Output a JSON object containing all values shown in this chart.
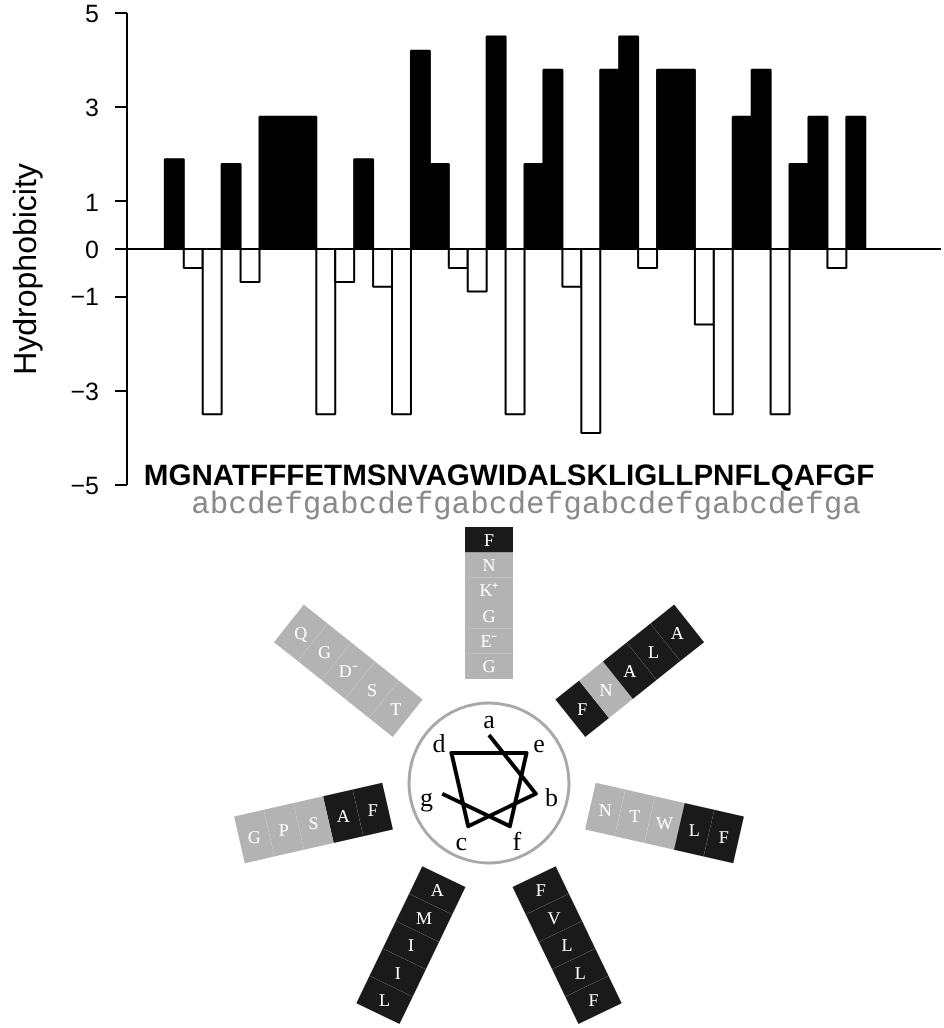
{
  "chart_data": [
    {
      "type": "bar",
      "ylabel": "Hydrophobicity",
      "categories": [
        null,
        null,
        null,
        null,
        null,
        null,
        null,
        null,
        null,
        null,
        null,
        null,
        null,
        null,
        null,
        null,
        null,
        null,
        null,
        null,
        null,
        null,
        null,
        null,
        null,
        null,
        null,
        null,
        null,
        null,
        null,
        null,
        null,
        null,
        null,
        null,
        null,
        null,
        null,
        null,
        null,
        null,
        null
      ],
      "values": [
        null,
        null,
        1.9,
        -0.4,
        -3.5,
        1.8,
        -0.7,
        2.8,
        2.8,
        2.8,
        -3.5,
        -0.7,
        1.9,
        -0.8,
        -3.5,
        4.2,
        1.8,
        -0.4,
        -0.9,
        4.5,
        -3.5,
        1.8,
        3.8,
        -0.8,
        -3.9,
        3.8,
        4.5,
        -0.4,
        3.8,
        3.8,
        -1.6,
        -3.5,
        2.8,
        3.8,
        -3.5,
        1.8,
        2.8,
        -0.4,
        2.8,
        null,
        null,
        null,
        null
      ],
      "colors": [
        null,
        null,
        "#000000",
        "#ffffff",
        "#ffffff",
        "#000000",
        "#ffffff",
        "#000000",
        "#000000",
        "#000000",
        "#ffffff",
        "#ffffff",
        "#000000",
        "#ffffff",
        "#ffffff",
        "#000000",
        "#000000",
        "#ffffff",
        "#ffffff",
        "#000000",
        "#ffffff",
        "#000000",
        "#000000",
        "#ffffff",
        "#ffffff",
        "#000000",
        "#000000",
        "#ffffff",
        "#000000",
        "#000000",
        "#ffffff",
        "#ffffff",
        "#000000",
        "#000000",
        "#ffffff",
        "#000000",
        "#000000",
        "#ffffff",
        "#000000",
        null,
        null,
        null,
        null
      ],
      "ylim": [
        -5,
        5
      ],
      "yticks": [
        -5,
        -3,
        -1,
        0,
        1,
        3,
        5
      ],
      "annotations": [
        "MGNATFFFETMSNVAGWIDALSKLIGLLPNFLQAFGF",
        "abcdefgabcdefgabcdefgabcdefgabcdefga"
      ]
    },
    {
      "type": "other",
      "categories": [
        "G",
        "N",
        "A",
        "T",
        "F",
        "F",
        "F",
        "E⁻",
        "T",
        "M",
        "S",
        "N",
        "V",
        "A",
        "G",
        "W",
        "I",
        "D⁻",
        "A",
        "L",
        "S",
        "K⁺",
        "L",
        "I",
        "G",
        "L",
        "L",
        "P",
        "N",
        "F",
        "L",
        "Q",
        "A",
        "F",
        "G",
        "F"
      ],
      "colors": [
        "#b3b3b3",
        "#b3b3b3",
        "#1a1a1a",
        "#b3b3b3",
        "#1a1a1a",
        "#1a1a1a",
        "#1a1a1a",
        "#b3b3b3",
        "#b3b3b3",
        "#1a1a1a",
        "#b3b3b3",
        "#b3b3b3",
        "#1a1a1a",
        "#1a1a1a",
        "#b3b3b3",
        "#b3b3b3",
        "#1a1a1a",
        "#b3b3b3",
        "#1a1a1a",
        "#1a1a1a",
        "#b3b3b3",
        "#b3b3b3",
        "#1a1a1a",
        "#1a1a1a",
        "#b3b3b3",
        "#1a1a1a",
        "#1a1a1a",
        "#b3b3b3",
        "#b3b3b3",
        "#1a1a1a",
        "#1a1a1a",
        "#b3b3b3",
        "#1a1a1a",
        "#1a1a1a",
        "#b3b3b3",
        "#1a1a1a"
      ],
      "annotations": [
        "a",
        "b",
        "c",
        "d",
        "e",
        "f",
        "g"
      ]
    }
  ]
}
